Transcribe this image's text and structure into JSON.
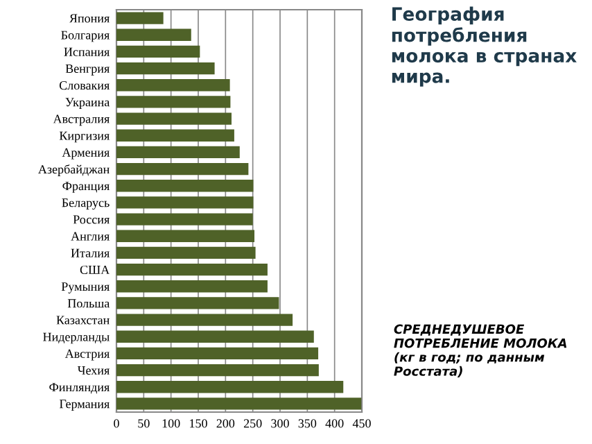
{
  "chart_data": {
    "type": "bar",
    "orientation": "horizontal",
    "title": "География потребления молока в странах мира.",
    "annotations": [
      "СРЕДНЕДУШЕВОЕ ПОТРЕБЛЕНИЕ МОЛОКА (кг в год; по данным Росстата)"
    ],
    "categories": [
      "Япония",
      "Болгария",
      "Испания",
      "Венгрия",
      "Словакия",
      "Украина",
      "Австралия",
      "Киргизия",
      "Армения",
      "Азербайджан",
      "Франция",
      "Беларусь",
      "Россия",
      "Англия",
      "Италия",
      "США",
      "Румыния",
      "Польша",
      "Казахстан",
      "Нидерланды",
      "Австрия",
      "Чехия",
      "Финляндия",
      "Германия"
    ],
    "values": [
      86,
      137,
      153,
      180,
      208,
      209,
      211,
      216,
      226,
      242,
      251,
      251,
      250,
      253,
      255,
      277,
      277,
      298,
      323,
      362,
      370,
      371,
      416,
      449
    ],
    "color": "#4f6228",
    "xlim": [
      0,
      450
    ],
    "xticks": [
      0,
      50,
      100,
      150,
      200,
      250,
      300,
      350,
      400,
      450
    ],
    "grid": "x",
    "legend": false
  }
}
